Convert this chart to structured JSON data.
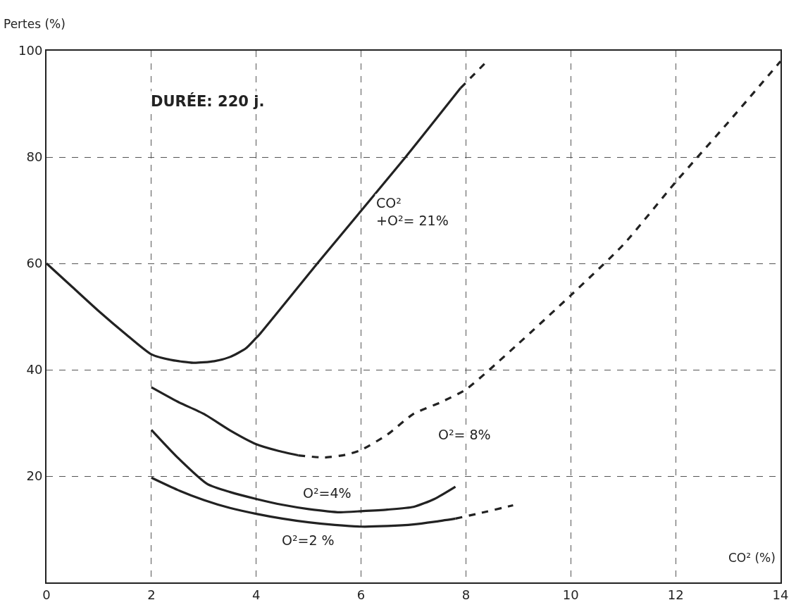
{
  "chart_data": {
    "type": "line",
    "xlabel": "CO² (%)",
    "ylabel": "Pertes (%)",
    "xlim": [
      0,
      14
    ],
    "xticks": [
      0,
      2,
      4,
      6,
      8,
      10,
      12,
      14
    ],
    "ylim": [
      0,
      100
    ],
    "yticks": [
      {
        "value": 0,
        "label": null
      },
      20,
      40,
      60,
      80,
      100
    ],
    "grid": true,
    "marker": "none",
    "series": [
      {
        "color": "#222222",
        "line_style": "solid",
        "x": [
          0,
          0.5,
          1,
          1.5,
          2,
          2.4,
          2.8,
          3.2,
          3.5,
          3.8,
          4,
          4.05,
          5.2,
          6.85,
          7.9
        ],
        "values": [
          60,
          55.5,
          51,
          46.8,
          42.9,
          41.8,
          41.3,
          41.6,
          42.4,
          44,
          46,
          46.5,
          60.4,
          80,
          93
        ]
      },
      {
        "color": "#222222",
        "line_style": "dashed",
        "x": [
          7.9,
          8.36
        ],
        "values": [
          93,
          97.6
        ]
      },
      {
        "color": "#222222",
        "line_style": "solid",
        "x": [
          2,
          2.5,
          3,
          3.5,
          4,
          4.4,
          4.8
        ],
        "values": [
          36.7,
          34,
          31.7,
          28.6,
          26,
          24.8,
          23.9
        ]
      },
      {
        "color": "#222222",
        "line_style": "dashed",
        "x": [
          4.8,
          5.3,
          5.7,
          6,
          6.5,
          7,
          7.5,
          8,
          9,
          10,
          11,
          12,
          13,
          14
        ],
        "values": [
          23.9,
          23.5,
          24,
          24.9,
          27.8,
          31.7,
          33.8,
          36.3,
          44.9,
          54,
          63.5,
          75.3,
          86.5,
          98
        ]
      },
      {
        "color": "#222222",
        "line_style": "solid",
        "x": [
          2,
          2.5,
          3.07,
          3.5,
          4,
          4.5,
          5,
          5.6,
          6,
          6.5,
          7,
          7.4,
          7.8
        ],
        "values": [
          28.7,
          23.5,
          18.5,
          17,
          15.7,
          14.6,
          13.8,
          13.2,
          13.4,
          13.7,
          14.2,
          15.7,
          18
        ]
      },
      {
        "color": "#222222",
        "line_style": "solid",
        "x": [
          2,
          2.5,
          3,
          3.5,
          4,
          4.5,
          5,
          5.5,
          6,
          6.5,
          7,
          7.4,
          7.8
        ],
        "values": [
          19.7,
          17.4,
          15.5,
          14,
          12.9,
          12,
          11.3,
          10.8,
          10.5,
          10.6,
          10.9,
          11.4,
          12
        ]
      },
      {
        "color": "#222222",
        "line_style": "dashed",
        "x": [
          7.8,
          8.3,
          8.9
        ],
        "values": [
          12,
          13.1,
          14.5
        ]
      }
    ],
    "annotations": [
      "DURÉE: 220 j.",
      "CO²\n+O²= 21%",
      "O²= 8%",
      "O²=4%",
      "O²=2 %"
    ]
  }
}
